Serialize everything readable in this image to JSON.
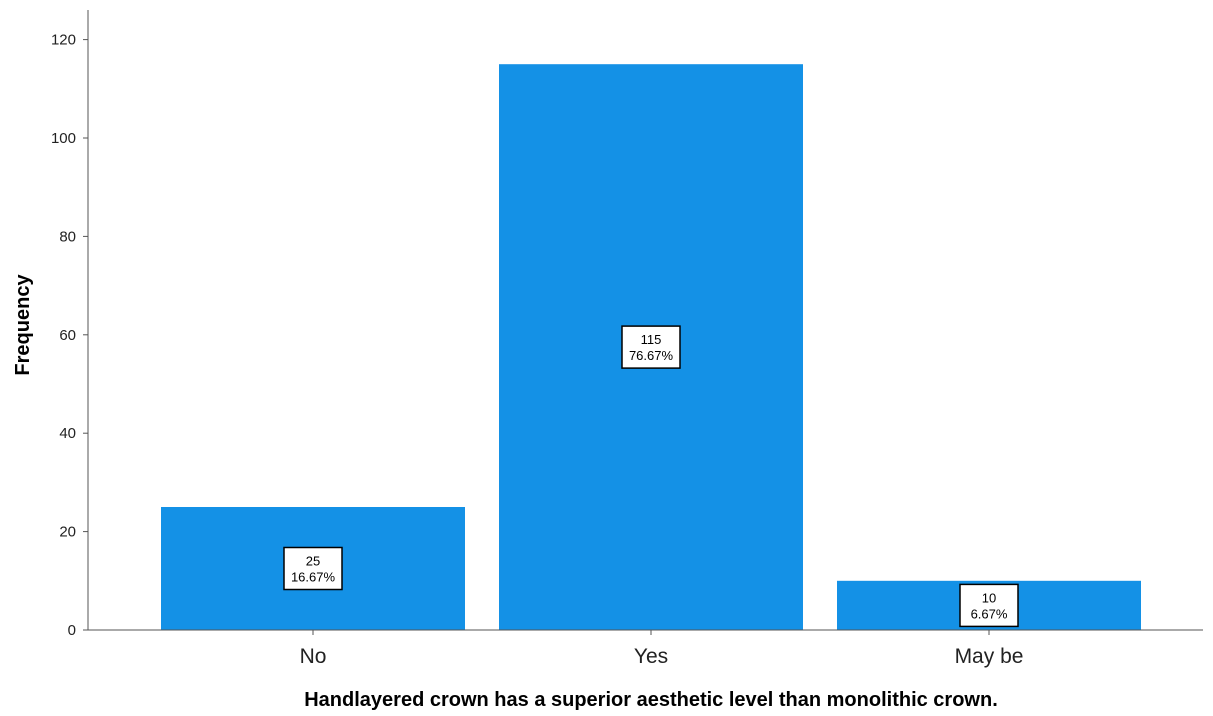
{
  "chart_data": {
    "type": "bar",
    "categories": [
      "No",
      "Yes",
      "May be"
    ],
    "values": [
      25,
      115,
      10
    ],
    "percent_labels": [
      "16.67%",
      "76.67%",
      "6.67%"
    ],
    "xlabel": "Handlayered crown has a superior aesthetic level than monolithic crown.",
    "ylabel": "Frequency",
    "ylim": [
      0,
      125
    ],
    "yticks": [
      0,
      20,
      40,
      60,
      80,
      100,
      120
    ],
    "grid": false,
    "bar_color": "#1491E6"
  }
}
